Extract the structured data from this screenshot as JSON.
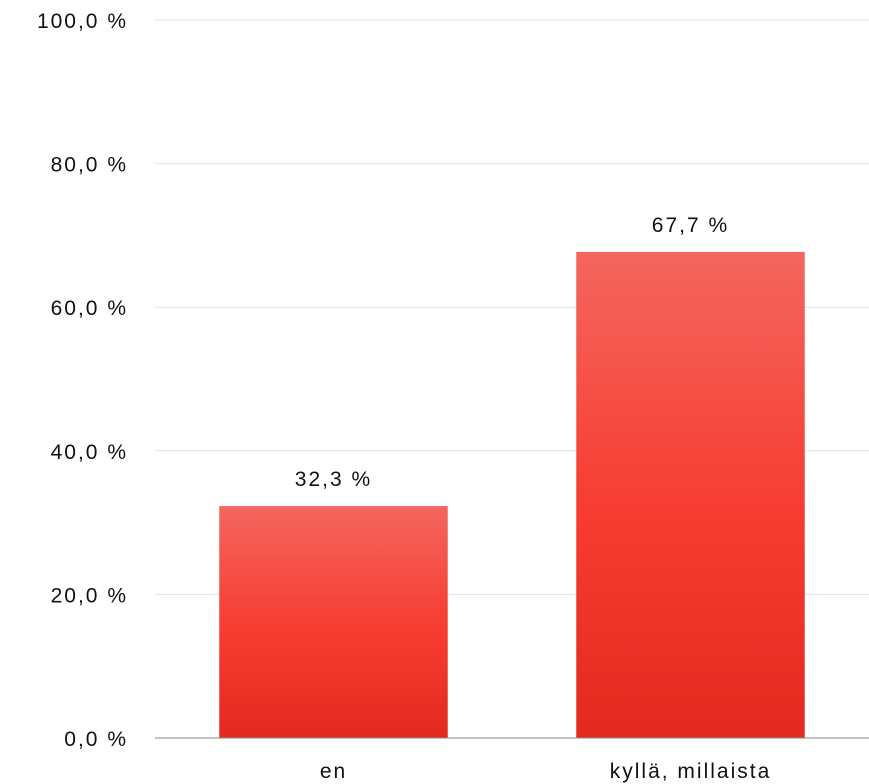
{
  "chart_data": {
    "type": "bar",
    "title": "",
    "xlabel": "",
    "ylabel": "",
    "categories": [
      "en",
      "kyllä, millaista"
    ],
    "values": [
      32.3,
      67.7
    ],
    "value_labels": [
      "32,3 %",
      "67,7 %"
    ],
    "ylim": [
      0,
      100
    ],
    "yticks": [
      0,
      20,
      40,
      60,
      80,
      100
    ],
    "ytick_labels": [
      "0,0 %",
      "20,0 %",
      "40,0 %",
      "60,0 %",
      "80,0 %",
      "100,0 %"
    ],
    "grid": true,
    "legend": "none",
    "colors": {
      "bar_top": "#f4665e",
      "bar_mid": "#f73b30",
      "bar_bottom": "#e32a1f",
      "grid": "#dde3ea",
      "axis": "#888888"
    }
  }
}
